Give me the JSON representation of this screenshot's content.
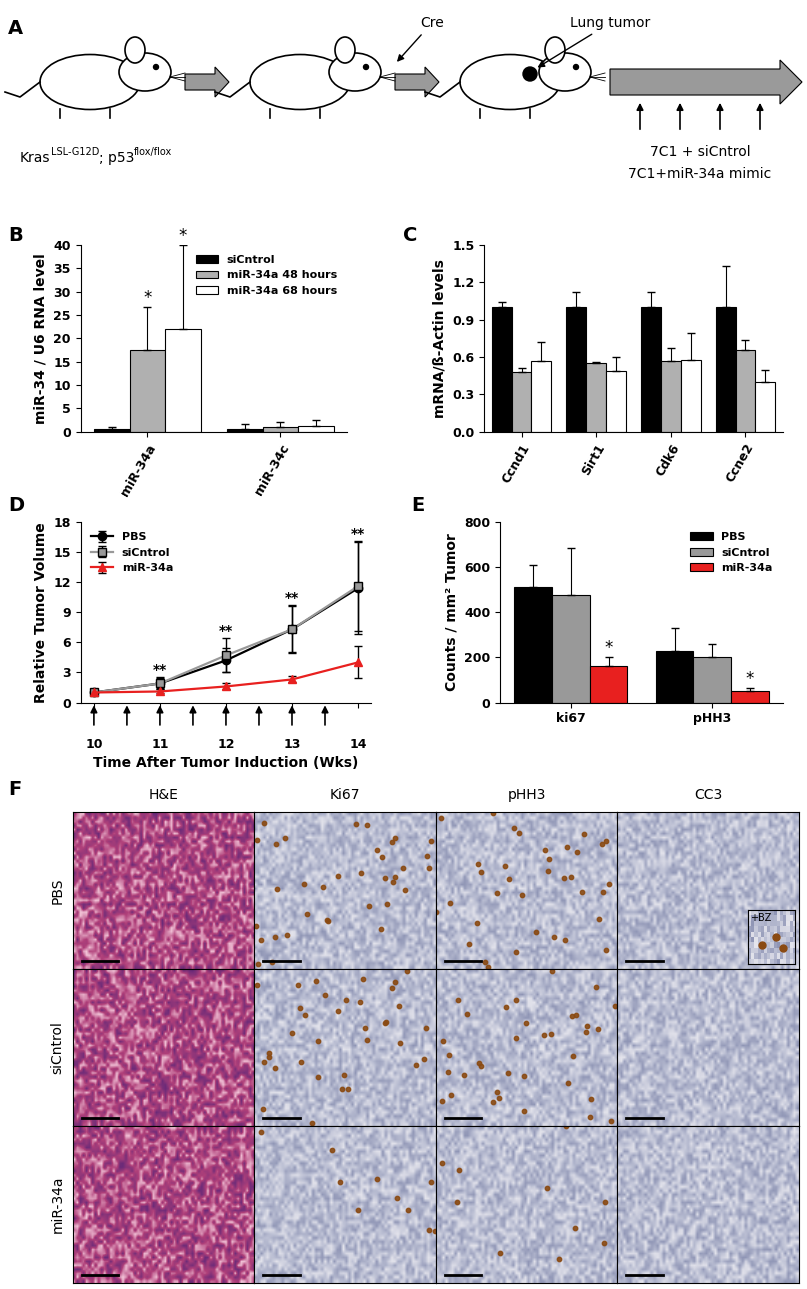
{
  "panel_labels": [
    "A",
    "B",
    "C",
    "D",
    "E",
    "F"
  ],
  "diagram": {
    "genotype": [
      "Kras",
      "LSL-G12D",
      "; p53",
      "flox/flox"
    ],
    "cre": "Cre",
    "tumor": "Lung tumor",
    "treatments": [
      "7C1 + siCntrol",
      "7C1+miR-34a mimic"
    ]
  },
  "chart_data": [
    {
      "type": "bar",
      "ylabel": "miR-34 / U6 RNA level",
      "categories": [
        "miR-34a",
        "miR-34c"
      ],
      "ylim": [
        0,
        40
      ],
      "yticks": [
        0,
        5,
        10,
        15,
        20,
        25,
        30,
        35,
        40
      ],
      "legend": "upper right",
      "series": [
        {
          "name": "siCntrol",
          "color": "#000000",
          "values": [
            0.5,
            0.5
          ],
          "errors": [
            0.5,
            1.2
          ]
        },
        {
          "name": "miR-34a 48 hours",
          "color": "#b0b0b0",
          "values": [
            17.5,
            1.0
          ],
          "errors": [
            9.3,
            1.0
          ],
          "marks": [
            "*",
            null
          ]
        },
        {
          "name": "miR-34a 68 hours",
          "color": "#ffffff",
          "values": [
            22.0,
            1.3
          ],
          "errors": [
            18.0,
            1.3
          ],
          "marks": [
            "*",
            null
          ]
        }
      ]
    },
    {
      "type": "bar",
      "ylabel": "mRNA/ß-Actin levels",
      "categories": [
        "Ccnd1",
        "Sirt1",
        "Cdk6",
        "Ccne2"
      ],
      "ylim": [
        0.0,
        1.5
      ],
      "yticks": [
        0.0,
        0.3,
        0.6,
        0.9,
        1.2,
        1.5
      ],
      "series": [
        {
          "color": "#000000",
          "values": [
            1.0,
            1.0,
            1.0,
            1.0
          ],
          "errors": [
            0.04,
            0.12,
            0.12,
            0.33
          ]
        },
        {
          "color": "#b0b0b0",
          "values": [
            0.48,
            0.55,
            0.57,
            0.66
          ],
          "errors": [
            0.03,
            0.01,
            0.1,
            0.08
          ]
        },
        {
          "color": "#ffffff",
          "values": [
            0.57,
            0.49,
            0.58,
            0.4
          ],
          "errors": [
            0.15,
            0.11,
            0.21,
            0.1
          ]
        }
      ]
    },
    {
      "type": "line",
      "xlabel": "Time After Tumor Induction (Wks)",
      "ylabel": "Relative Tumor Volume",
      "x": [
        10,
        11,
        12,
        13,
        14
      ],
      "xlim": [
        9.8,
        14.2
      ],
      "xticks": [
        10,
        11,
        12,
        13,
        14
      ],
      "ylim": [
        0,
        18
      ],
      "yticks": [
        0,
        3,
        6,
        9,
        12,
        15,
        18
      ],
      "legend": "upper left",
      "series": [
        {
          "name": "PBS",
          "color": "#000000",
          "marker": "circle",
          "values": [
            1.0,
            1.9,
            4.2,
            7.3,
            11.4
          ],
          "errors": [
            0.1,
            0.6,
            1.2,
            2.3,
            4.6
          ]
        },
        {
          "name": "siCntrol",
          "color": "#999999",
          "marker": "square",
          "values": [
            1.0,
            1.9,
            4.7,
            7.3,
            11.6
          ],
          "errors": [
            0.1,
            0.5,
            1.7,
            2.4,
            4.5
          ]
        },
        {
          "name": "miR-34a",
          "color": "#e8201f",
          "marker": "triangle",
          "values": [
            1.0,
            1.1,
            1.6,
            2.3,
            4.0
          ],
          "errors": [
            0.05,
            0.2,
            0.3,
            0.3,
            1.6
          ]
        }
      ],
      "annotations": [
        {
          "x": 11,
          "text": "**"
        },
        {
          "x": 12,
          "text": "**"
        },
        {
          "x": 13,
          "text": "**"
        },
        {
          "x": 14,
          "text": "**"
        }
      ],
      "injections": [
        10,
        10.5,
        11,
        11.5,
        12,
        12.5,
        13,
        13.5
      ]
    },
    {
      "type": "bar",
      "ylabel": "Counts / mm² Tumor",
      "categories": [
        "ki67",
        "pHH3"
      ],
      "ylim": [
        0,
        800
      ],
      "yticks": [
        0,
        200,
        400,
        600,
        800
      ],
      "legend": "upper right",
      "series": [
        {
          "name": "PBS",
          "color": "#000000",
          "values": [
            510,
            230
          ],
          "errors": [
            100,
            100
          ]
        },
        {
          "name": "siCntrol",
          "color": "#999999",
          "values": [
            475,
            200
          ],
          "errors": [
            210,
            60
          ]
        },
        {
          "name": "miR-34a",
          "color": "#e8201f",
          "values": [
            160,
            50
          ],
          "errors": [
            40,
            15
          ],
          "marks": [
            "*",
            "*"
          ]
        }
      ]
    }
  ],
  "images": {
    "columns": [
      "H&E",
      "Ki67",
      "pHH3",
      "CC3"
    ],
    "rows": [
      "PBS",
      "siCntrol",
      "miR-34a"
    ],
    "inset": "+BZ"
  }
}
